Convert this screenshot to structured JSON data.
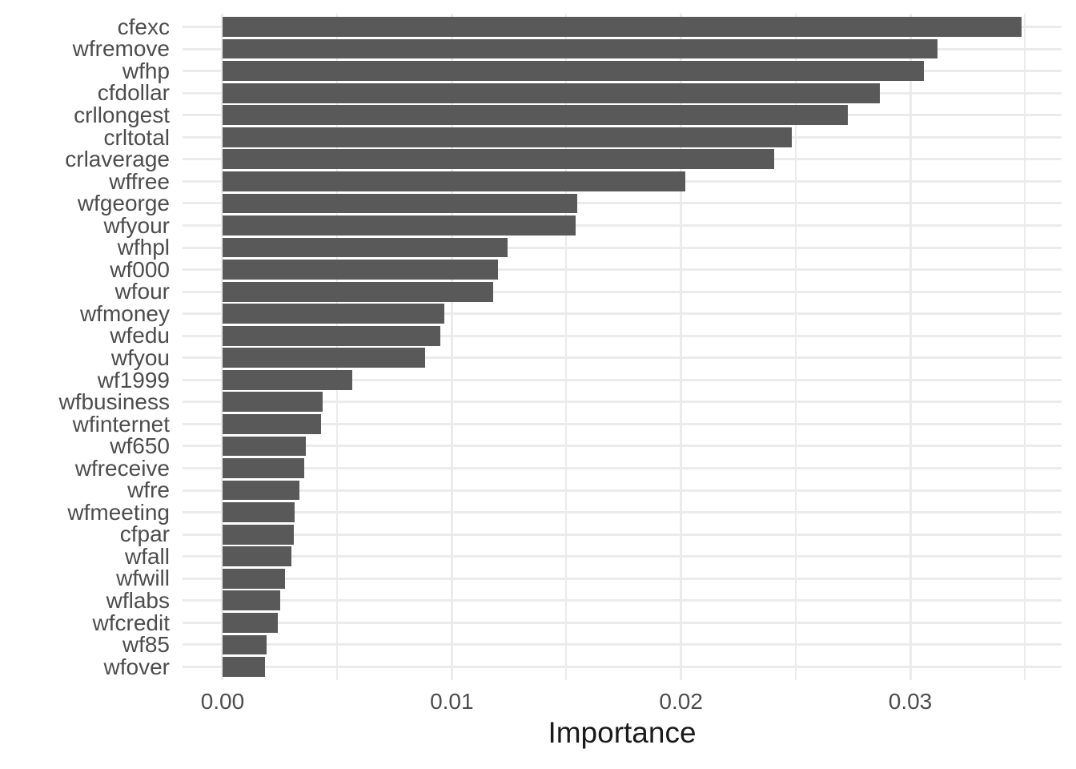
{
  "chart_data": {
    "type": "bar",
    "orientation": "horizontal",
    "title": "",
    "xlabel": "Importance",
    "ylabel": "",
    "categories": [
      "cfexc",
      "wfremove",
      "wfhp",
      "cfdollar",
      "crllongest",
      "crltotal",
      "crlaverage",
      "wffree",
      "wfgeorge",
      "wfyour",
      "wfhpl",
      "wf000",
      "wfour",
      "wfmoney",
      "wfedu",
      "wfyou",
      "wf1999",
      "wfbusiness",
      "wfinternet",
      "wf650",
      "wfreceive",
      "wfre",
      "wfmeeting",
      "cfpar",
      "wfall",
      "wfwill",
      "wflabs",
      "wfcredit",
      "wf85",
      "wfover"
    ],
    "values": [
      0.03486,
      0.03119,
      0.0306,
      0.02867,
      0.02727,
      0.02483,
      0.02406,
      0.02018,
      0.01546,
      0.01539,
      0.01245,
      0.01203,
      0.01182,
      0.00969,
      0.00951,
      0.00885,
      0.00566,
      0.00437,
      0.0043,
      0.00364,
      0.00357,
      0.00336,
      0.00315,
      0.00311,
      0.00301,
      0.00273,
      0.00252,
      0.00241,
      0.00192,
      0.00185
    ],
    "x_ticks": [
      0,
      0.01,
      0.02,
      0.03
    ],
    "x_tick_labels": [
      "0.00",
      "0.01",
      "0.02",
      "0.03"
    ],
    "x_minor_ticks": [
      0.005,
      0.015,
      0.025,
      0.035
    ],
    "xlim": [
      -0.001745,
      0.0366
    ],
    "grid": true,
    "legend_position": "none",
    "bar_fill_color": "#595959",
    "grid_color": "#EBEBEB",
    "tick_label_color": "#4D4D4D",
    "axis_title_color": "#1A1A1A",
    "background_color": "#FFFFFF",
    "bar_relative_width": 0.9
  }
}
